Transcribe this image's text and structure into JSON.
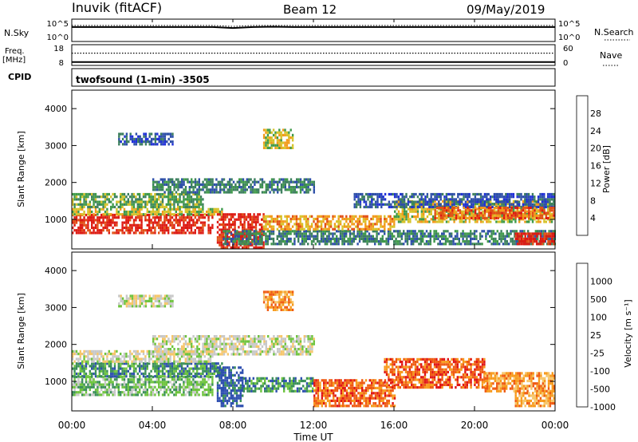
{
  "header": {
    "station": "Inuvik (fitACF)",
    "beam": "Beam 12",
    "date": "09/May/2019"
  },
  "left_labels": {
    "nsky": "N.Sky",
    "freq_line1": "Freq.",
    "freq_line2": "[MHz]",
    "cpid": "CPID"
  },
  "right_labels": {
    "nsearch": "N.Search",
    "nave": "Nave"
  },
  "mode_label": "twofsound (1-min) -3505",
  "xaxis": {
    "label": "Time UT",
    "ticks": [
      "00:00",
      "04:00",
      "08:00",
      "12:00",
      "16:00",
      "20:00",
      "00:00"
    ]
  },
  "colors": {
    "power": [
      "#1f2fd8",
      "#2d4fa8",
      "#3c7f5e",
      "#3f9a49",
      "#d6c32a",
      "#f29a1a",
      "#e25016",
      "#dd1a12"
    ],
    "velocity": [
      "#e01515",
      "#ef5a12",
      "#f79a1c",
      "#f6c66a",
      "#c8c8c8",
      "#6ec43e",
      "#3a8f58",
      "#2e4fb0"
    ]
  },
  "chart_data": [
    {
      "type": "line",
      "title": "",
      "series": [
        {
          "name": "N.Sky",
          "values": [
            3.6,
            3.6,
            3.6,
            3.6,
            3.6,
            3.6,
            3.6,
            3.6,
            3.3,
            3.6,
            3.7,
            3.6,
            3.6,
            3.6,
            3.6,
            3.6,
            3.6,
            3.6,
            3.6,
            3.6,
            3.6,
            3.6,
            3.6,
            3.6,
            3.6
          ]
        },
        {
          "name": "N.Search",
          "values": [
            3.6,
            3.6,
            3.6,
            3.6,
            3.6,
            3.6,
            3.6,
            3.6,
            3.3,
            3.6,
            3.6,
            3.6,
            3.6,
            3.6,
            3.6,
            3.6,
            3.6,
            3.6,
            3.6,
            3.6,
            3.6,
            3.6,
            3.6,
            3.6,
            3.6
          ]
        }
      ],
      "x_hours": [
        0,
        1,
        2,
        3,
        4,
        5,
        6,
        7,
        8,
        9,
        10,
        11,
        12,
        13,
        14,
        15,
        16,
        17,
        18,
        19,
        20,
        21,
        22,
        23,
        24
      ],
      "yleft_ticks": [
        "10^5",
        "10^0"
      ],
      "yright_ticks": [
        "10^5",
        "10^0"
      ]
    },
    {
      "type": "line",
      "title": "",
      "series": [
        {
          "name": "Freq",
          "values": [
            9.0,
            9.0,
            9.0,
            9.0,
            9.0,
            9.0,
            9.0,
            9.0,
            9.0,
            9.0,
            9.0,
            9.0,
            9.0,
            9.0,
            9.0,
            9.0,
            9.0,
            9.0,
            9.0,
            9.0,
            9.0,
            9.0,
            9.0,
            9.0,
            9.0
          ]
        },
        {
          "name": "Nave",
          "values": [
            38,
            38,
            38,
            38,
            38,
            38,
            38,
            38,
            38,
            38,
            38,
            38,
            38,
            38,
            38,
            38,
            38,
            38,
            38,
            38,
            38,
            38,
            38,
            38,
            38
          ]
        }
      ],
      "x_hours": [
        0,
        1,
        2,
        3,
        4,
        5,
        6,
        7,
        8,
        9,
        10,
        11,
        12,
        13,
        14,
        15,
        16,
        17,
        18,
        19,
        20,
        21,
        22,
        23,
        24
      ],
      "yleft_ticks": [
        "18",
        "8"
      ],
      "yright_ticks": [
        "60",
        "0"
      ]
    },
    {
      "type": "heatmap",
      "title": "",
      "ylabel": "Slant Range [km]",
      "xlabel": "Time UT",
      "ylim": [
        200,
        4500
      ],
      "yticks": [
        "1000",
        "2000",
        "3000",
        "4000"
      ],
      "colorbar": {
        "label": "Power [dB]",
        "ticks": [
          "4",
          "8",
          "12",
          "16",
          "20",
          "24",
          "28"
        ],
        "range": [
          0,
          30
        ]
      },
      "bands": [
        {
          "t0": 0.0,
          "t1": 7.0,
          "r0": 600,
          "r1": 1100,
          "level": 7
        },
        {
          "t0": 0.0,
          "t1": 7.5,
          "r0": 1100,
          "r1": 1300,
          "level": 4
        },
        {
          "t0": 0.0,
          "t1": 6.5,
          "r0": 1300,
          "r1": 1700,
          "level": 3
        },
        {
          "t0": 4.0,
          "t1": 12.0,
          "r0": 1700,
          "r1": 2100,
          "level": 2
        },
        {
          "t0": 7.2,
          "t1": 9.5,
          "r0": 200,
          "r1": 1100,
          "level": 7
        },
        {
          "t0": 7.5,
          "t1": 24.0,
          "r0": 300,
          "r1": 700,
          "level": 2
        },
        {
          "t0": 9.5,
          "t1": 16.0,
          "r0": 700,
          "r1": 1100,
          "level": 5
        },
        {
          "t0": 16.0,
          "t1": 23.8,
          "r0": 900,
          "r1": 1500,
          "level": 4
        },
        {
          "t0": 14.0,
          "t1": 24.0,
          "r0": 1300,
          "r1": 1700,
          "level": 1
        },
        {
          "t0": 18.0,
          "t1": 24.0,
          "r0": 1000,
          "r1": 1300,
          "level": 6
        },
        {
          "t0": 22.0,
          "t1": 24.0,
          "r0": 300,
          "r1": 600,
          "level": 7
        },
        {
          "t0": 2.3,
          "t1": 5.0,
          "r0": 3000,
          "r1": 3300,
          "level": 1
        },
        {
          "t0": 9.5,
          "t1": 11.0,
          "r0": 2900,
          "r1": 3400,
          "level": 4
        }
      ]
    },
    {
      "type": "heatmap",
      "title": "",
      "ylabel": "Slant Range [km]",
      "xlabel": "Time UT",
      "ylim": [
        200,
        4500
      ],
      "yticks": [
        "1000",
        "2000",
        "3000",
        "4000"
      ],
      "colorbar": {
        "label": "Velocity [m s⁻¹]",
        "ticks": [
          "1000",
          "500",
          "100",
          "25",
          "-25",
          "-100",
          "-500",
          "-1000"
        ]
      },
      "bands": [
        {
          "t0": 0.0,
          "t1": 7.0,
          "r0": 600,
          "r1": 1100,
          "level": 5
        },
        {
          "t0": 0.0,
          "t1": 7.5,
          "r0": 1100,
          "r1": 1500,
          "level": 6
        },
        {
          "t0": 0.0,
          "t1": 7.0,
          "r0": 1500,
          "r1": 1800,
          "level": 4
        },
        {
          "t0": 4.0,
          "t1": 12.0,
          "r0": 1700,
          "r1": 2200,
          "level": 4
        },
        {
          "t0": 7.2,
          "t1": 8.5,
          "r0": 300,
          "r1": 1400,
          "level": 7
        },
        {
          "t0": 8.5,
          "t1": 12.0,
          "r0": 700,
          "r1": 1100,
          "level": 6
        },
        {
          "t0": 12.0,
          "t1": 16.0,
          "r0": 300,
          "r1": 1000,
          "level": 1
        },
        {
          "t0": 15.5,
          "t1": 20.5,
          "r0": 800,
          "r1": 1600,
          "level": 1
        },
        {
          "t0": 20.5,
          "t1": 24.0,
          "r0": 700,
          "r1": 1200,
          "level": 2
        },
        {
          "t0": 22.0,
          "t1": 24.0,
          "r0": 300,
          "r1": 700,
          "level": 2
        },
        {
          "t0": 2.3,
          "t1": 5.0,
          "r0": 3000,
          "r1": 3300,
          "level": 4
        },
        {
          "t0": 9.5,
          "t1": 11.0,
          "r0": 2900,
          "r1": 3400,
          "level": 2
        }
      ]
    }
  ]
}
